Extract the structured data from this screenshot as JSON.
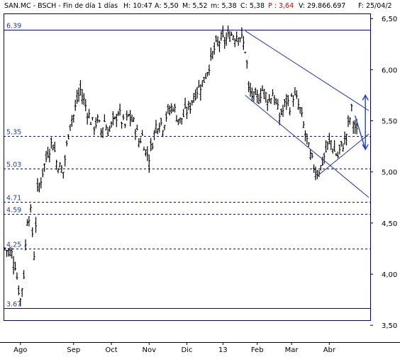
{
  "header": {
    "ticker": "SAN.MC - BSCH - Fin de día 1 días",
    "h": "H: 10:47",
    "a": "A: 5,50",
    "m": "M: 5,52",
    "mm": "m: 5,38",
    "c": "C: 5,38",
    "p": "P : 3,64",
    "v": "V: 29.866.697",
    "f": "F: 25/04/2"
  },
  "chart_data": {
    "type": "candlestick",
    "title": "",
    "xlabel": "",
    "ylabel": "",
    "ylim": [
      3.55,
      6.55
    ],
    "y_ticks": [
      "6,50",
      "6,00",
      "5,50",
      "5,00",
      "4,50",
      "4,00",
      "3,50"
    ],
    "y_tick_values": [
      6.5,
      6.0,
      5.5,
      5.0,
      4.5,
      4.0,
      3.5
    ],
    "x_tick_labels": [
      "Ago",
      "Sep",
      "Oct",
      "Nov",
      "Dic",
      "13",
      "Feb",
      "Mar",
      "Abr"
    ],
    "x_tick_index": [
      9,
      40,
      62,
      84,
      106,
      127,
      147,
      167,
      189
    ],
    "n_bars": 213,
    "levels": [
      {
        "label": "6.39",
        "value": 6.39,
        "style": "solid"
      },
      {
        "label": "5.35",
        "value": 5.35,
        "style": "dashed"
      },
      {
        "label": "5.03",
        "value": 5.03,
        "style": "dashed"
      },
      {
        "label": "4.71",
        "value": 4.71,
        "style": "dashed"
      },
      {
        "label": "4.59",
        "value": 4.59,
        "style": "dashed"
      },
      {
        "label": "4.25",
        "value": 4.25,
        "style": "dashed"
      },
      {
        "label": "3.67",
        "value": 3.67,
        "style": "solid"
      }
    ],
    "close_path": [
      [
        0,
        4.25
      ],
      [
        4,
        4.2
      ],
      [
        6,
        4.1
      ],
      [
        8,
        3.85
      ],
      [
        9,
        3.75
      ],
      [
        11,
        4.0
      ],
      [
        13,
        4.55
      ],
      [
        15,
        4.6
      ],
      [
        17,
        4.2
      ],
      [
        19,
        4.8
      ],
      [
        22,
        5.0
      ],
      [
        25,
        5.2
      ],
      [
        28,
        5.3
      ],
      [
        30,
        5.1
      ],
      [
        32,
        5.05
      ],
      [
        34,
        5.0
      ],
      [
        36,
        5.25
      ],
      [
        38,
        5.5
      ],
      [
        40,
        5.55
      ],
      [
        42,
        5.7
      ],
      [
        44,
        5.8
      ],
      [
        46,
        5.7
      ],
      [
        48,
        5.6
      ],
      [
        50,
        5.5
      ],
      [
        52,
        5.45
      ],
      [
        54,
        5.5
      ],
      [
        56,
        5.4
      ],
      [
        58,
        5.5
      ],
      [
        60,
        5.4
      ],
      [
        62,
        5.45
      ],
      [
        64,
        5.5
      ],
      [
        66,
        5.6
      ],
      [
        68,
        5.5
      ],
      [
        70,
        5.45
      ],
      [
        72,
        5.55
      ],
      [
        74,
        5.5
      ],
      [
        76,
        5.45
      ],
      [
        78,
        5.3
      ],
      [
        80,
        5.35
      ],
      [
        82,
        5.2
      ],
      [
        84,
        5.15
      ],
      [
        86,
        5.3
      ],
      [
        88,
        5.45
      ],
      [
        90,
        5.5
      ],
      [
        92,
        5.45
      ],
      [
        94,
        5.55
      ],
      [
        96,
        5.6
      ],
      [
        98,
        5.65
      ],
      [
        100,
        5.55
      ],
      [
        102,
        5.5
      ],
      [
        104,
        5.55
      ],
      [
        106,
        5.6
      ],
      [
        108,
        5.65
      ],
      [
        110,
        5.75
      ],
      [
        112,
        5.8
      ],
      [
        114,
        5.85
      ],
      [
        116,
        5.9
      ],
      [
        118,
        6.0
      ],
      [
        120,
        6.1
      ],
      [
        122,
        6.2
      ],
      [
        124,
        6.25
      ],
      [
        126,
        6.3
      ],
      [
        128,
        6.28
      ],
      [
        130,
        6.32
      ],
      [
        132,
        6.35
      ],
      [
        134,
        6.33
      ],
      [
        136,
        6.36
      ],
      [
        138,
        6.3
      ],
      [
        140,
        6.2
      ],
      [
        141,
        6.05
      ],
      [
        142,
        5.8
      ],
      [
        144,
        5.75
      ],
      [
        146,
        5.7
      ],
      [
        148,
        5.75
      ],
      [
        150,
        5.8
      ],
      [
        152,
        5.75
      ],
      [
        154,
        5.7
      ],
      [
        156,
        5.78
      ],
      [
        158,
        5.65
      ],
      [
        160,
        5.55
      ],
      [
        162,
        5.6
      ],
      [
        164,
        5.7
      ],
      [
        166,
        5.65
      ],
      [
        168,
        5.75
      ],
      [
        170,
        5.7
      ],
      [
        172,
        5.6
      ],
      [
        174,
        5.45
      ],
      [
        176,
        5.3
      ],
      [
        178,
        5.15
      ],
      [
        180,
        5.05
      ],
      [
        182,
        5.0
      ],
      [
        184,
        5.05
      ],
      [
        186,
        5.15
      ],
      [
        188,
        5.25
      ],
      [
        190,
        5.3
      ],
      [
        192,
        5.2
      ],
      [
        194,
        5.15
      ],
      [
        196,
        5.25
      ],
      [
        198,
        5.3
      ],
      [
        200,
        5.45
      ],
      [
        202,
        5.6
      ],
      [
        203,
        5.5
      ],
      [
        205,
        5.38
      ]
    ],
    "trend_lines": [
      {
        "x1": 140,
        "y1": 6.38,
        "x2": 212,
        "y2": 5.6
      },
      {
        "x1": 140,
        "y1": 5.75,
        "x2": 212,
        "y2": 4.75
      },
      {
        "x1": 182,
        "y1": 4.96,
        "x2": 212,
        "y2": 5.37
      }
    ],
    "arrow": {
      "x": 210,
      "y_top": 5.75,
      "y_bottom": 5.22,
      "x_start": 204,
      "y_start": 5.55
    },
    "colors": {
      "bars": "#000000",
      "axis_lines": "#000080",
      "level_lines": "#0000cc",
      "trend_lines": "#1e2fb5",
      "arrow": "#1e3fd6",
      "grid_text": "#2040b0",
      "header_p": "#d00000"
    }
  }
}
